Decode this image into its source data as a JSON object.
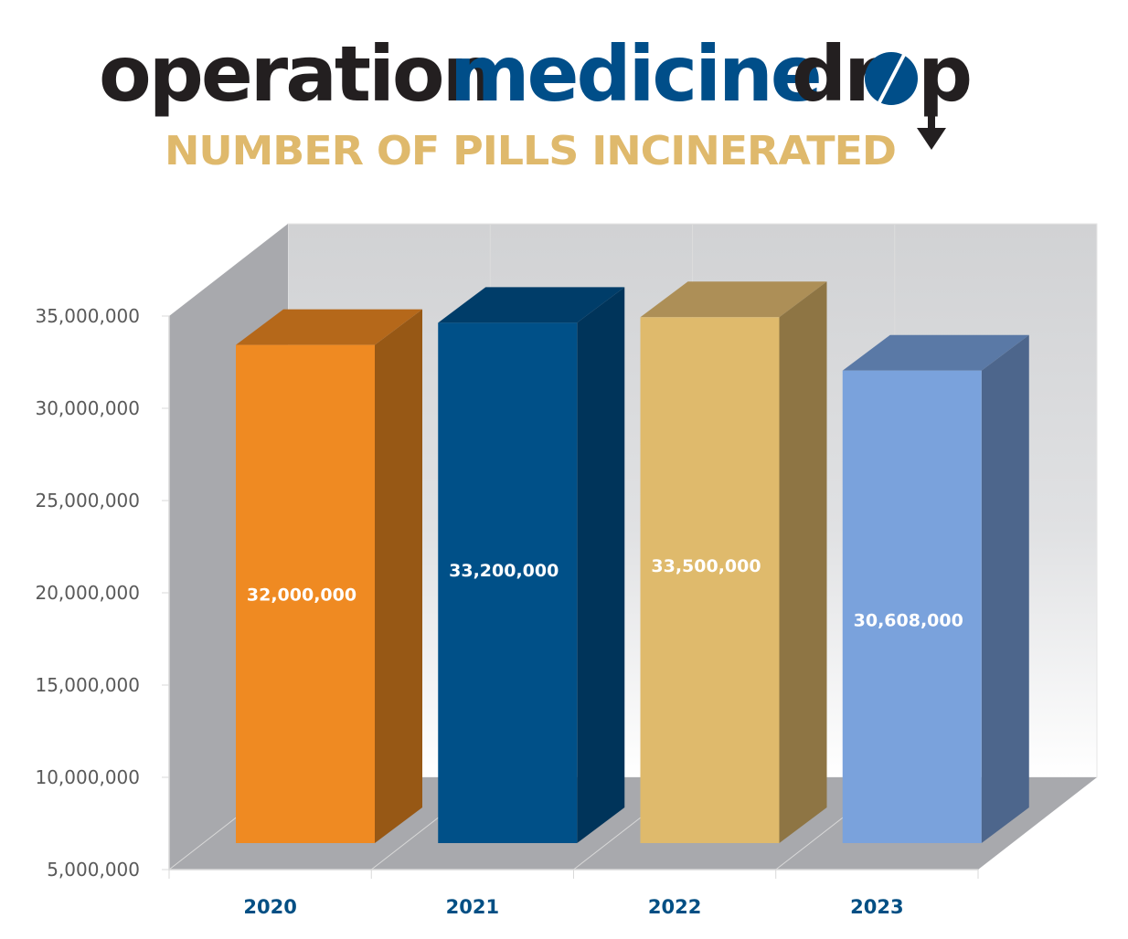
{
  "header": {
    "brand_part1": "operation",
    "brand_part2": "medicine",
    "brand_part3_prefix": "dr",
    "brand_part3_suffix": "p",
    "brand_icon": "pill-icon",
    "arrow_icon": "down-arrow-icon",
    "subtitle": "NUMBER OF PILLS INCINERATED",
    "colors": {
      "brand_dark": "#231f20",
      "brand_blue": "#004e89",
      "subtitle_gold": "#dfb96c"
    }
  },
  "chart_data": {
    "type": "bar",
    "style": "3d-column",
    "title": "NUMBER OF PILLS INCINERATED",
    "xlabel": "",
    "ylabel": "",
    "categories": [
      "2020",
      "2021",
      "2022",
      "2023"
    ],
    "values": [
      32000000,
      33200000,
      33500000,
      30608000
    ],
    "data_labels": [
      "32,000,000",
      "33,200,000",
      "33,500,000",
      "30,608,000"
    ],
    "ylim": [
      5000000,
      35000000
    ],
    "yticks": [
      5000000,
      10000000,
      15000000,
      20000000,
      25000000,
      30000000,
      35000000
    ],
    "ytick_labels": [
      "5,000,000",
      "10,000,000",
      "15,000,000",
      "20,000,000",
      "25,000,000",
      "30,000,000",
      "35,000,000"
    ],
    "grid": false,
    "legend": "none",
    "bar_colors": [
      {
        "front": "#ef8a22",
        "top": "#b5681a",
        "side": "#975815"
      },
      {
        "front": "#005088",
        "top": "#003d69",
        "side": "#00345a"
      },
      {
        "front": "#dfba6c",
        "top": "#ad8f57",
        "side": "#8e7544"
      },
      {
        "front": "#7aa2dc",
        "top": "#5a79a6",
        "side": "#4d668c"
      }
    ],
    "wall_colors": {
      "side": "#a8a9ad",
      "floor": "#a8a9ad",
      "back_top": "#d1d2d4",
      "back_bottom": "#ffffff"
    }
  }
}
